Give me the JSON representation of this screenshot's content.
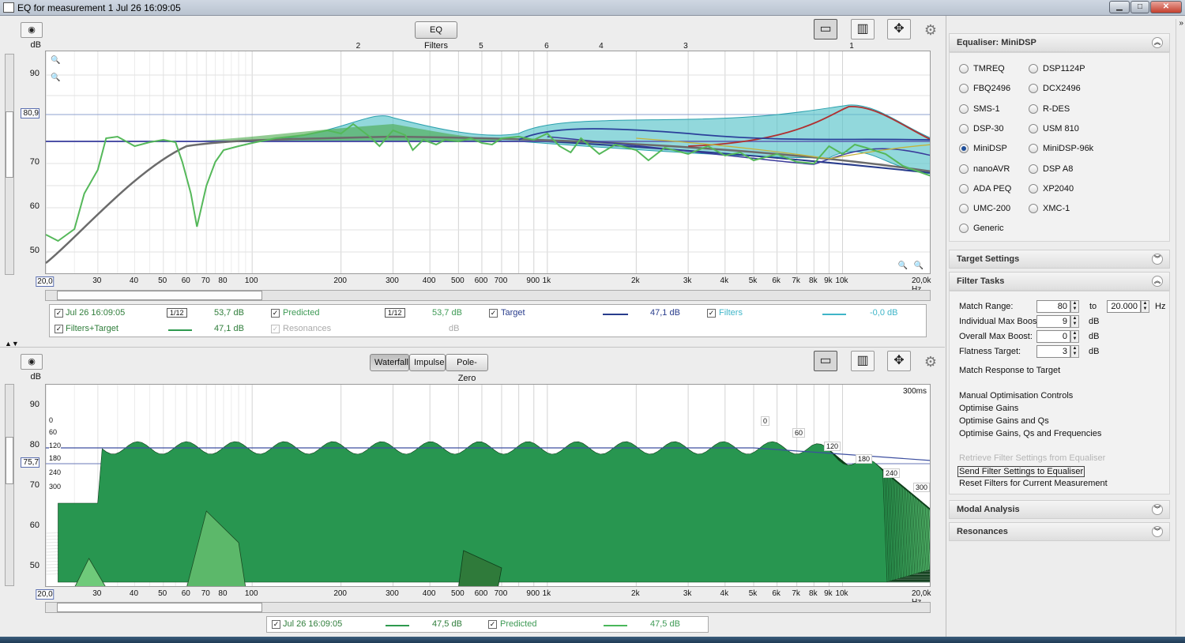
{
  "window": {
    "title": "EQ for measurement 1 Jul 26 16:09:05",
    "min": "▁",
    "max": "□",
    "close": "✕"
  },
  "top": {
    "eq_filters_label": "EQ Filters",
    "db_label": "dB",
    "y_ticks": [
      "90",
      "80,9",
      "70",
      "60",
      "50"
    ],
    "x_ticks": [
      "20,0",
      "30",
      "40",
      "50",
      "60",
      "70",
      "80",
      "100",
      "200",
      "300",
      "400",
      "500",
      "600",
      "700",
      "900",
      "1k",
      "2k",
      "3k",
      "4k",
      "5k",
      "6k",
      "7k",
      "8k",
      "9k",
      "10k",
      "20,0k Hz"
    ],
    "filter_markers": [
      "2",
      "5",
      "6",
      "4",
      "3",
      "1"
    ],
    "legend": [
      {
        "checked": true,
        "name": "Jul 26 16:09:05",
        "smoothing": "1/12",
        "value": "53,7 dB",
        "color": "#4ab75a"
      },
      {
        "checked": true,
        "name": "Predicted",
        "smoothing": "1/12",
        "value": "53,7 dB",
        "color": "#7a7a7a"
      },
      {
        "checked": true,
        "name": "Target",
        "value": "47,1 dB",
        "color": "#283c8c"
      },
      {
        "checked": true,
        "name": "Filters",
        "value": "-0,0 dB",
        "color": "#3fb5c8"
      },
      {
        "checked": true,
        "name": "Filters+Target",
        "value": "47,1 dB",
        "color": "#2e9a4e"
      },
      {
        "checked": true,
        "name": "Resonances",
        "value": "dB",
        "color": "#999999"
      }
    ]
  },
  "bottom": {
    "tabs": [
      "Waterfall",
      "Impulse",
      "Pole-Zero"
    ],
    "db_label": "dB",
    "y_ticks": [
      "90",
      "80",
      "75,7",
      "70",
      "60",
      "50"
    ],
    "x_ticks": [
      "20,0",
      "30",
      "40",
      "50",
      "60",
      "70",
      "80",
      "100",
      "200",
      "300",
      "400",
      "500",
      "600",
      "700",
      "900",
      "1k",
      "2k",
      "3k",
      "4k",
      "5k",
      "6k",
      "7k",
      "8k",
      "9k",
      "10k",
      "20,0k Hz"
    ],
    "time_label": "300ms",
    "left_ms": [
      "0",
      "60",
      "120",
      "180",
      "240",
      "300"
    ],
    "right_ms": [
      "0",
      "60",
      "120",
      "180",
      "240",
      "300"
    ],
    "legend": [
      {
        "checked": true,
        "name": "Jul 26 16:09:05",
        "value": "47,5 dB",
        "color": "#2e9a4e"
      },
      {
        "checked": true,
        "name": "Predicted",
        "value": "47,5 dB",
        "color": "#4ab75a"
      }
    ]
  },
  "side": {
    "equaliser_header": "Equaliser: MiniDSP",
    "equalisers": [
      {
        "name": "TMREQ",
        "selected": false
      },
      {
        "name": "DSP1124P",
        "selected": false
      },
      {
        "name": "FBQ2496",
        "selected": false
      },
      {
        "name": "DCX2496",
        "selected": false
      },
      {
        "name": "SMS-1",
        "selected": false
      },
      {
        "name": "R-DES",
        "selected": false
      },
      {
        "name": "DSP-30",
        "selected": false
      },
      {
        "name": "USM 810",
        "selected": false
      },
      {
        "name": "MiniDSP",
        "selected": true
      },
      {
        "name": "MiniDSP-96k",
        "selected": false
      },
      {
        "name": "nanoAVR",
        "selected": false
      },
      {
        "name": "DSP A8",
        "selected": false
      },
      {
        "name": "ADA PEQ",
        "selected": false
      },
      {
        "name": "XP2040",
        "selected": false
      },
      {
        "name": "UMC-200",
        "selected": false
      },
      {
        "name": "XMC-1",
        "selected": false
      },
      {
        "name": "Generic",
        "selected": false
      }
    ],
    "target_settings": "Target Settings",
    "filter_tasks": "Filter Tasks",
    "match_range_label": "Match Range:",
    "match_range_from": "80",
    "match_range_to_label": "to",
    "match_range_to": "20.000",
    "hz": "Hz",
    "ind_max_boost_label": "Individual Max Boost:",
    "ind_max_boost": "9",
    "overall_max_boost_label": "Overall Max Boost:",
    "overall_max_boost": "0",
    "flatness_label": "Flatness Target:",
    "flatness": "3",
    "db": "dB",
    "match_response": "Match Response to Target",
    "manual_opt": "Manual Optimisation Controls",
    "opt_gains": "Optimise Gains",
    "opt_gains_qs": "Optimise Gains and Qs",
    "opt_all": "Optimise Gains, Qs and Frequencies",
    "retrieve": "Retrieve Filter Settings from Equaliser",
    "send": "Send Filter Settings to Equaliser",
    "reset": "Reset Filters for Current Measurement",
    "modal": "Modal Analysis",
    "resonances": "Resonances"
  }
}
